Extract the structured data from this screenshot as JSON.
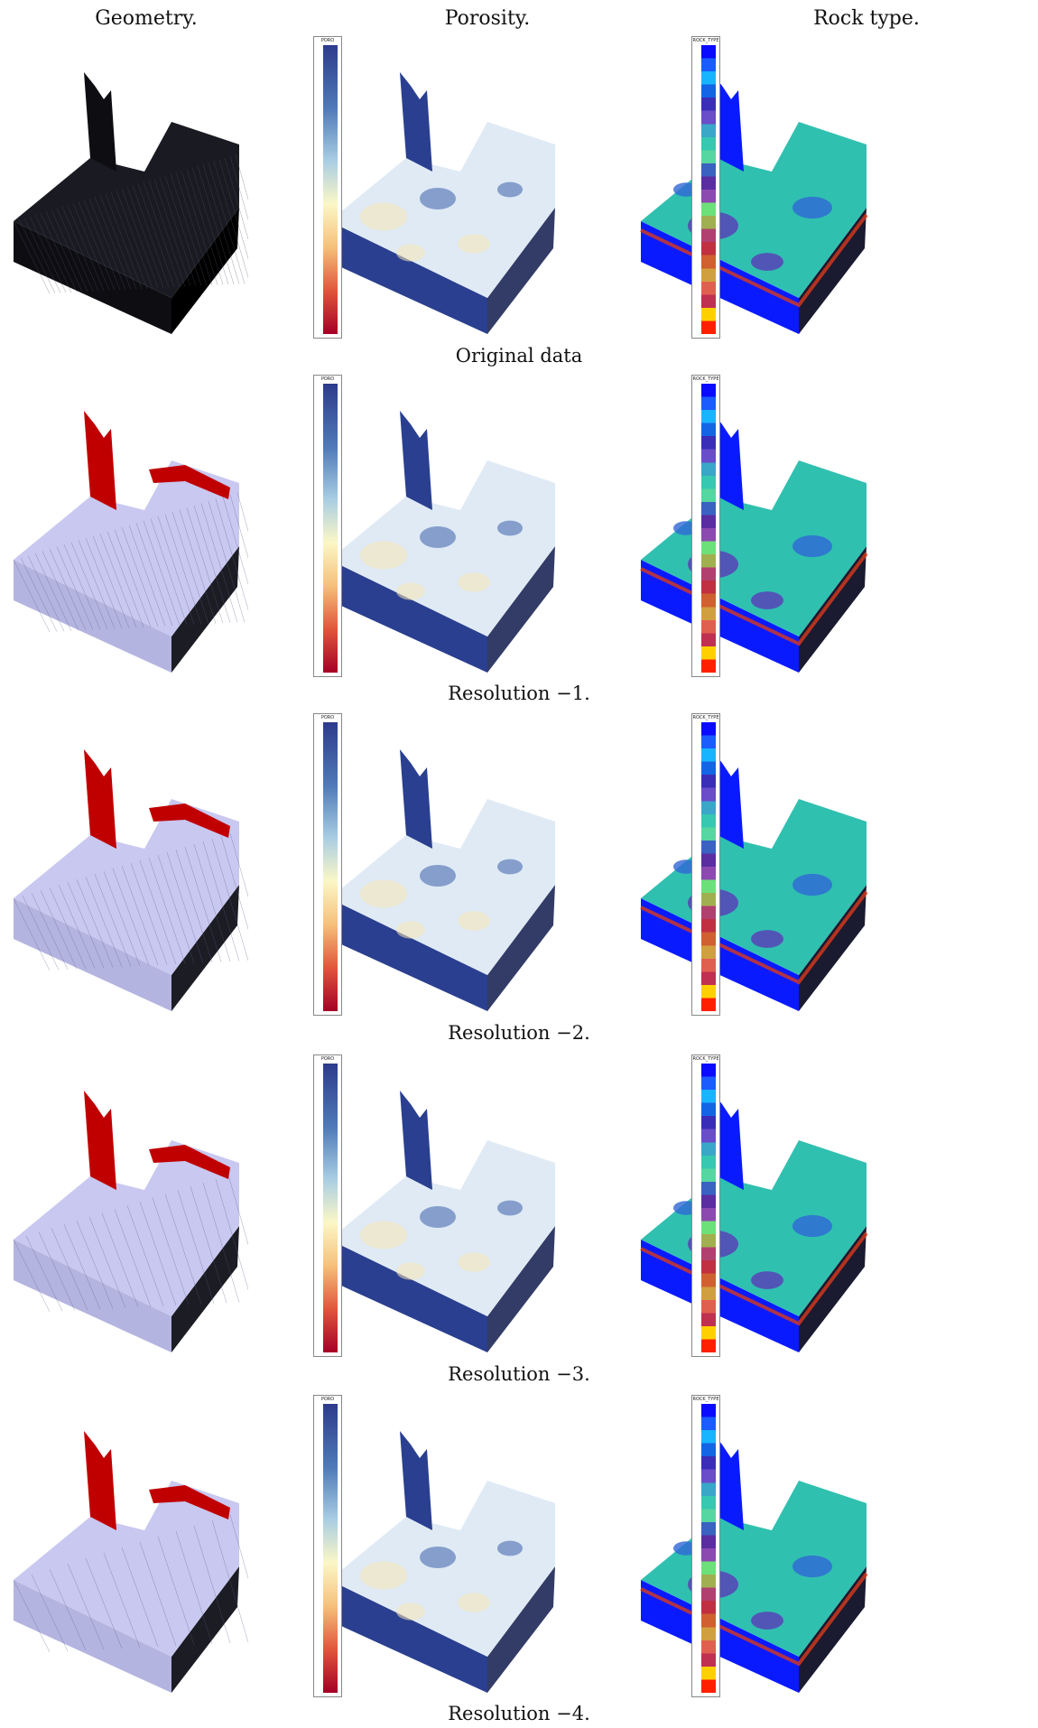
{
  "columns": [
    "Geometry.",
    "Porosity.",
    "Rock type."
  ],
  "rows": [
    {
      "caption": "Original data"
    },
    {
      "caption": "Resolution −1."
    },
    {
      "caption": "Resolution −2."
    },
    {
      "caption": "Resolution −3."
    },
    {
      "caption": "Resolution −4."
    }
  ],
  "colorbars": {
    "poro": {
      "title": "PORO"
    },
    "rock": {
      "title": "ROCK_TYPE"
    }
  },
  "colors": {
    "geometry_dark": "#1a1a22",
    "geometry_light": "#c8c8f0",
    "fault_red": "#c00000",
    "porosity_base": "#2a3f8f",
    "porosity_light": "#dfeaf5",
    "rock_blue": "#0a1aff",
    "rock_teal": "#30c0b0",
    "rock_purple": "#5a3ab8"
  }
}
